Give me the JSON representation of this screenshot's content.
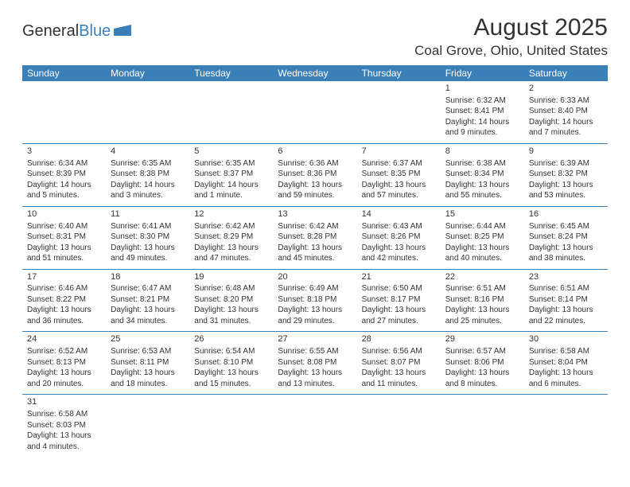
{
  "logo": {
    "text1": "General",
    "text2": "Blue"
  },
  "header": {
    "title": "August 2025",
    "location": "Coal Grove, Ohio, United States"
  },
  "colors": {
    "header_bg": "#3b7fb8",
    "header_fg": "#ffffff",
    "border": "#3b7fb8",
    "text": "#333333"
  },
  "columns": [
    "Sunday",
    "Monday",
    "Tuesday",
    "Wednesday",
    "Thursday",
    "Friday",
    "Saturday"
  ],
  "weeks": [
    [
      null,
      null,
      null,
      null,
      null,
      {
        "d": "1",
        "sr": "6:32 AM",
        "ss": "8:41 PM",
        "dl": "14 hours and 9 minutes."
      },
      {
        "d": "2",
        "sr": "6:33 AM",
        "ss": "8:40 PM",
        "dl": "14 hours and 7 minutes."
      }
    ],
    [
      {
        "d": "3",
        "sr": "6:34 AM",
        "ss": "8:39 PM",
        "dl": "14 hours and 5 minutes."
      },
      {
        "d": "4",
        "sr": "6:35 AM",
        "ss": "8:38 PM",
        "dl": "14 hours and 3 minutes."
      },
      {
        "d": "5",
        "sr": "6:35 AM",
        "ss": "8:37 PM",
        "dl": "14 hours and 1 minute."
      },
      {
        "d": "6",
        "sr": "6:36 AM",
        "ss": "8:36 PM",
        "dl": "13 hours and 59 minutes."
      },
      {
        "d": "7",
        "sr": "6:37 AM",
        "ss": "8:35 PM",
        "dl": "13 hours and 57 minutes."
      },
      {
        "d": "8",
        "sr": "6:38 AM",
        "ss": "8:34 PM",
        "dl": "13 hours and 55 minutes."
      },
      {
        "d": "9",
        "sr": "6:39 AM",
        "ss": "8:32 PM",
        "dl": "13 hours and 53 minutes."
      }
    ],
    [
      {
        "d": "10",
        "sr": "6:40 AM",
        "ss": "8:31 PM",
        "dl": "13 hours and 51 minutes."
      },
      {
        "d": "11",
        "sr": "6:41 AM",
        "ss": "8:30 PM",
        "dl": "13 hours and 49 minutes."
      },
      {
        "d": "12",
        "sr": "6:42 AM",
        "ss": "8:29 PM",
        "dl": "13 hours and 47 minutes."
      },
      {
        "d": "13",
        "sr": "6:42 AM",
        "ss": "8:28 PM",
        "dl": "13 hours and 45 minutes."
      },
      {
        "d": "14",
        "sr": "6:43 AM",
        "ss": "8:26 PM",
        "dl": "13 hours and 42 minutes."
      },
      {
        "d": "15",
        "sr": "6:44 AM",
        "ss": "8:25 PM",
        "dl": "13 hours and 40 minutes."
      },
      {
        "d": "16",
        "sr": "6:45 AM",
        "ss": "8:24 PM",
        "dl": "13 hours and 38 minutes."
      }
    ],
    [
      {
        "d": "17",
        "sr": "6:46 AM",
        "ss": "8:22 PM",
        "dl": "13 hours and 36 minutes."
      },
      {
        "d": "18",
        "sr": "6:47 AM",
        "ss": "8:21 PM",
        "dl": "13 hours and 34 minutes."
      },
      {
        "d": "19",
        "sr": "6:48 AM",
        "ss": "8:20 PM",
        "dl": "13 hours and 31 minutes."
      },
      {
        "d": "20",
        "sr": "6:49 AM",
        "ss": "8:18 PM",
        "dl": "13 hours and 29 minutes."
      },
      {
        "d": "21",
        "sr": "6:50 AM",
        "ss": "8:17 PM",
        "dl": "13 hours and 27 minutes."
      },
      {
        "d": "22",
        "sr": "6:51 AM",
        "ss": "8:16 PM",
        "dl": "13 hours and 25 minutes."
      },
      {
        "d": "23",
        "sr": "6:51 AM",
        "ss": "8:14 PM",
        "dl": "13 hours and 22 minutes."
      }
    ],
    [
      {
        "d": "24",
        "sr": "6:52 AM",
        "ss": "8:13 PM",
        "dl": "13 hours and 20 minutes."
      },
      {
        "d": "25",
        "sr": "6:53 AM",
        "ss": "8:11 PM",
        "dl": "13 hours and 18 minutes."
      },
      {
        "d": "26",
        "sr": "6:54 AM",
        "ss": "8:10 PM",
        "dl": "13 hours and 15 minutes."
      },
      {
        "d": "27",
        "sr": "6:55 AM",
        "ss": "8:08 PM",
        "dl": "13 hours and 13 minutes."
      },
      {
        "d": "28",
        "sr": "6:56 AM",
        "ss": "8:07 PM",
        "dl": "13 hours and 11 minutes."
      },
      {
        "d": "29",
        "sr": "6:57 AM",
        "ss": "8:06 PM",
        "dl": "13 hours and 8 minutes."
      },
      {
        "d": "30",
        "sr": "6:58 AM",
        "ss": "8:04 PM",
        "dl": "13 hours and 6 minutes."
      }
    ],
    [
      {
        "d": "31",
        "sr": "6:58 AM",
        "ss": "8:03 PM",
        "dl": "13 hours and 4 minutes."
      },
      null,
      null,
      null,
      null,
      null,
      null
    ]
  ],
  "labels": {
    "sunrise": "Sunrise:",
    "sunset": "Sunset:",
    "daylight": "Daylight:"
  }
}
